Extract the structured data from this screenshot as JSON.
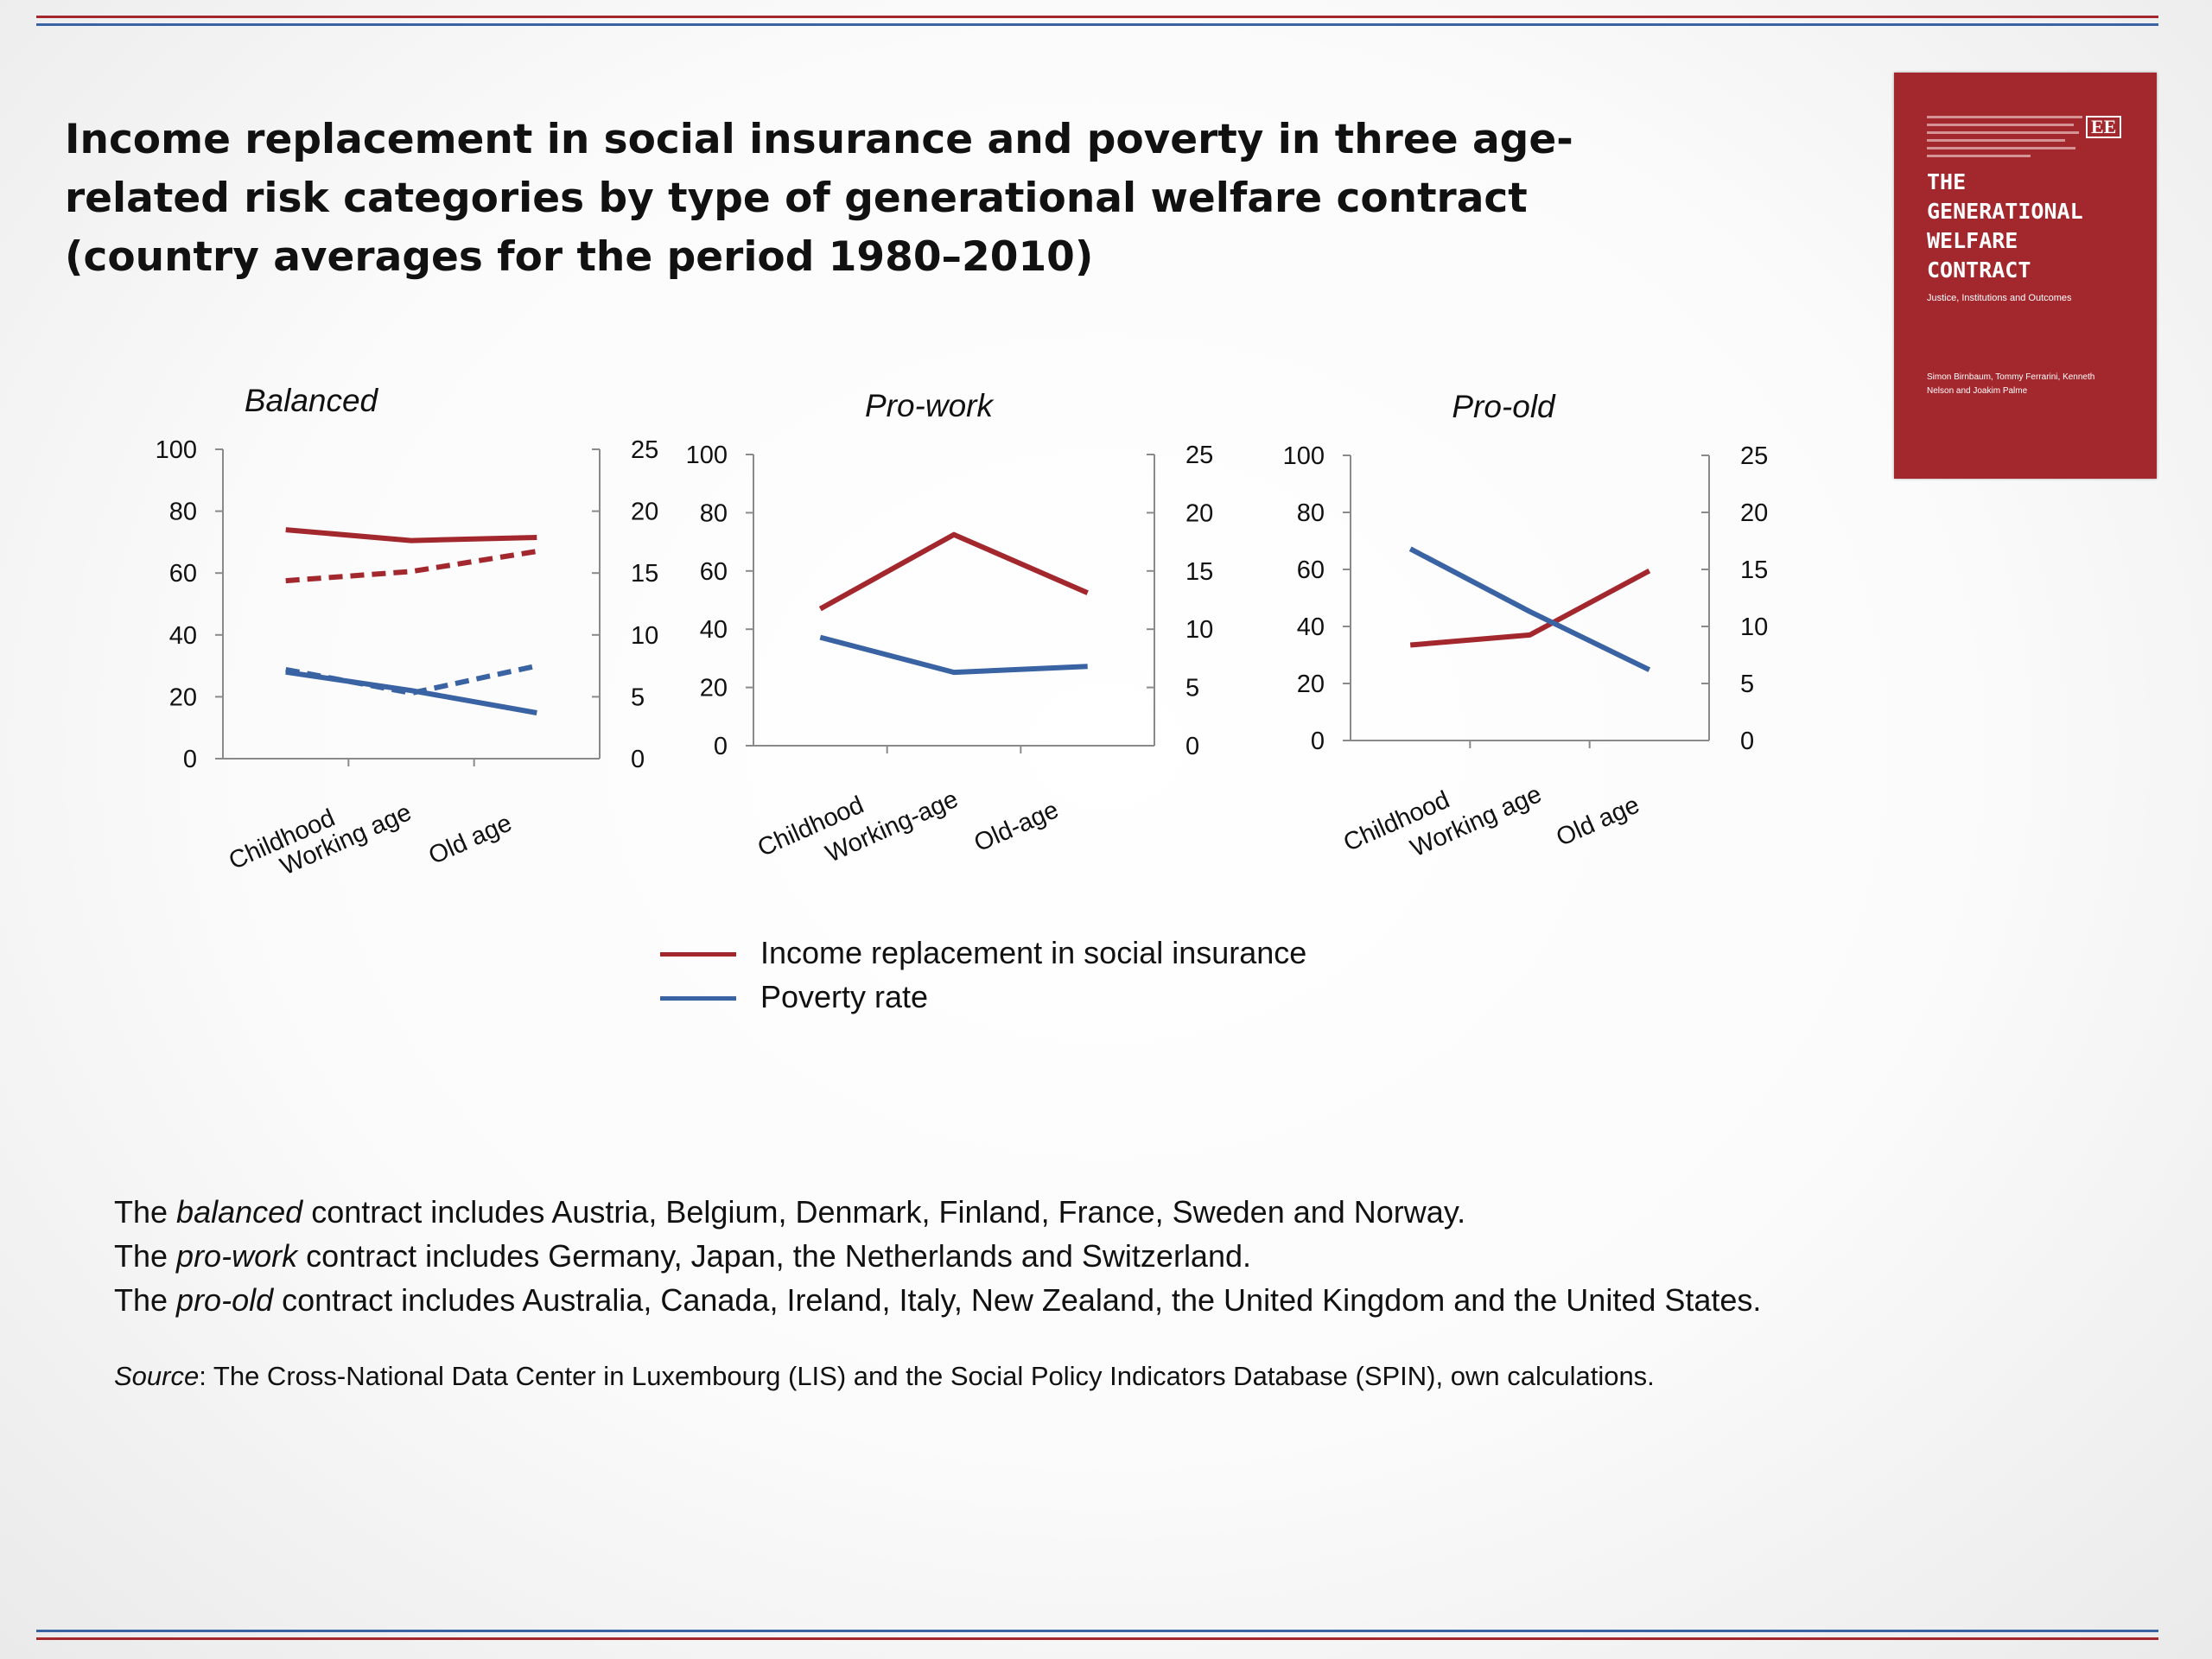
{
  "colors": {
    "income": "#a3282e",
    "poverty": "#3a63a3",
    "rule_red": "#a3282e",
    "rule_blue": "#3a63a3",
    "axis": "#8a8a8a"
  },
  "title": "Income replacement in social insurance and poverty in three age-related risk categories by type of generational welfare contract (country averages for the period 1980–2010)",
  "book_cover": {
    "publisher_mark": "EE",
    "title": "THE GENERATIONAL WELFARE CONTRACT",
    "subtitle": "Justice, Institutions and Outcomes",
    "authors": "Simon Birnbaum, Tommy Ferrarini, Kenneth Nelson and Joakim Palme"
  },
  "chart_data": [
    {
      "type": "line",
      "title": "Balanced",
      "categories": [
        "Childhood",
        "Working age",
        "Old age"
      ],
      "y_left": {
        "range": [
          0,
          100
        ],
        "ticks": [
          "0",
          "20",
          "40",
          "60",
          "80",
          "100"
        ]
      },
      "y_right": {
        "range": [
          0,
          25
        ],
        "ticks": [
          "0",
          "5",
          "10",
          "15",
          "20",
          "25"
        ]
      },
      "series": [
        {
          "legend": "Income replacement in social insurance",
          "axis": "left",
          "style": "solid",
          "color": "#a3282e",
          "values": [
            74,
            70.5,
            71.5
          ]
        },
        {
          "legend": "Income replacement in social insurance",
          "axis": "left",
          "style": "dashed",
          "color": "#a3282e",
          "values": [
            57.5,
            60.5,
            67
          ]
        },
        {
          "legend": "Poverty rate",
          "axis": "right",
          "style": "solid",
          "color": "#3a63a3",
          "values": [
            7,
            5.5,
            3.7
          ]
        },
        {
          "legend": "Poverty rate",
          "axis": "right",
          "style": "dashed",
          "color": "#3a63a3",
          "values": [
            7.2,
            5.3,
            7.5
          ]
        }
      ]
    },
    {
      "type": "line",
      "title": "Pro-work",
      "categories": [
        "Childhood",
        "Working-age",
        "Old-age"
      ],
      "y_left": {
        "range": [
          0,
          100
        ],
        "ticks": [
          "0",
          "20",
          "40",
          "60",
          "80",
          "100"
        ]
      },
      "y_right": {
        "range": [
          0,
          25
        ],
        "ticks": [
          "0",
          "5",
          "10",
          "15",
          "20",
          "25"
        ]
      },
      "series": [
        {
          "legend": "Income replacement in social insurance",
          "axis": "left",
          "style": "solid",
          "color": "#a3282e",
          "values": [
            47,
            72.5,
            52.5
          ]
        },
        {
          "legend": "Poverty rate",
          "axis": "right",
          "style": "solid",
          "color": "#3a63a3",
          "values": [
            9.3,
            6.3,
            6.8
          ]
        }
      ]
    },
    {
      "type": "line",
      "title": "Pro-old",
      "categories": [
        "Childhood",
        "Working age",
        "Old age"
      ],
      "y_left": {
        "range": [
          0,
          100
        ],
        "ticks": [
          "0",
          "20",
          "40",
          "60",
          "80",
          "100"
        ]
      },
      "y_right": {
        "range": [
          0,
          25
        ],
        "ticks": [
          "0",
          "5",
          "10",
          "15",
          "20",
          "25"
        ]
      },
      "series": [
        {
          "legend": "Income replacement in social insurance",
          "axis": "left",
          "style": "solid",
          "color": "#a3282e",
          "values": [
            33.5,
            37,
            59.5
          ]
        },
        {
          "legend": "Poverty rate",
          "axis": "right",
          "style": "solid",
          "color": "#3a63a3",
          "values": [
            16.8,
            11.3,
            6.2
          ]
        }
      ]
    }
  ],
  "legend": [
    {
      "label": "Income replacement in social insurance",
      "color": "#a3282e"
    },
    {
      "label": "Poverty rate",
      "color": "#3a63a3"
    }
  ],
  "notes": [
    {
      "pre": "The ",
      "term": "balanced",
      "post": " contract includes Austria, Belgium, Denmark, Finland, France, Sweden and Norway."
    },
    {
      "pre": "The ",
      "term": "pro-work",
      "post": " contract includes Germany, Japan, the Netherlands and Switzerland."
    },
    {
      "pre": "The ",
      "term": "pro-old",
      "post": " contract includes Australia, Canada, Ireland, Italy, New Zealand, the United Kingdom and the United States."
    }
  ],
  "source": {
    "label": "Source",
    "text": ": The Cross-National Data Center in Luxembourg (LIS) and the Social Policy Indicators Database (SPIN), own calculations."
  }
}
